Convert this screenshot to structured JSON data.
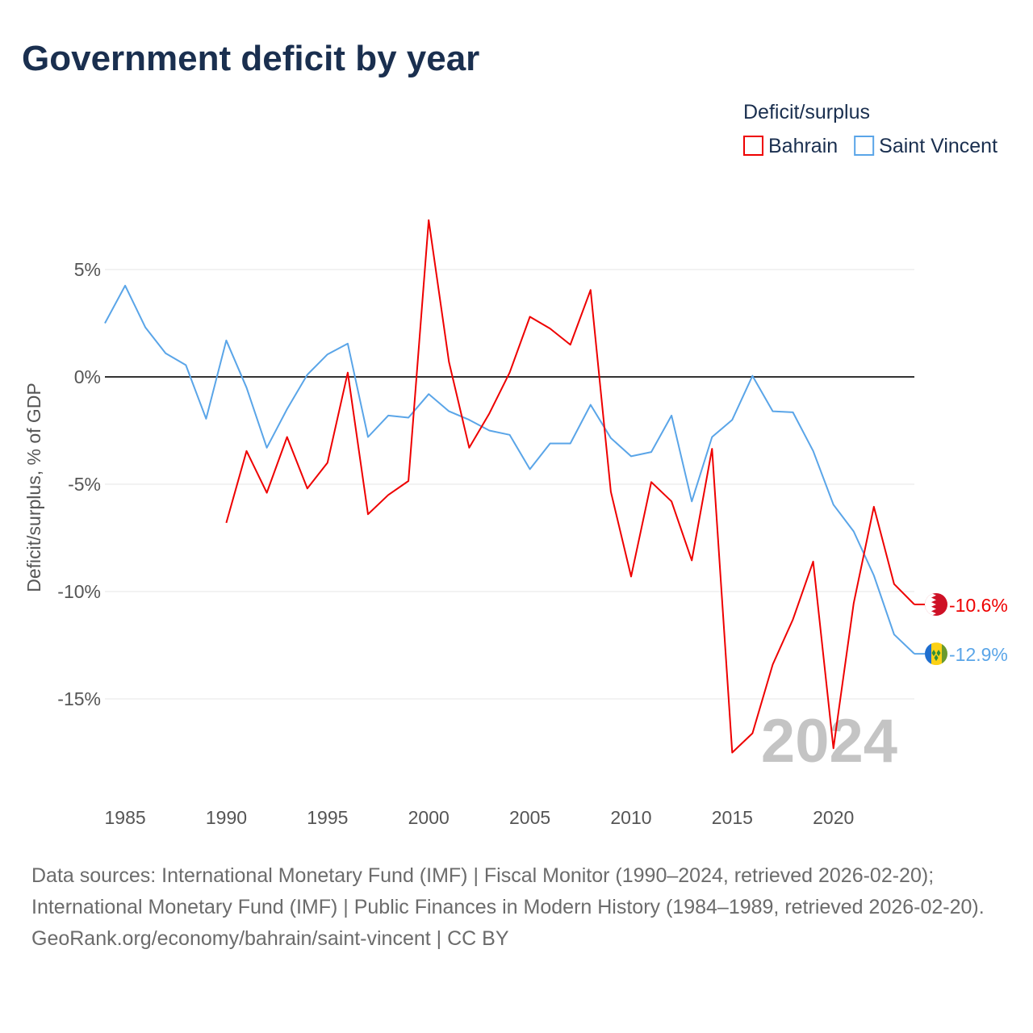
{
  "title": "Government deficit by year",
  "footer": {
    "sources": "Data sources: International Monetary Fund (IMF) | Fiscal Monitor (1990–2024, retrieved 2026-02-20); International Monetary Fund (IMF) | Public Finances in Modern History (1984–1989, retrieved 2026-02-20).",
    "credit": "GeoRank.org/economy/bahrain/saint-vincent | CC BY"
  },
  "chart_data": {
    "type": "line",
    "title": "Government deficit by year",
    "xlabel": "",
    "ylabel": "Deficit/surplus, % of GDP",
    "xlim": [
      1984,
      2024
    ],
    "ylim": [
      -19,
      8
    ],
    "xticks": [
      1985,
      1990,
      1995,
      2000,
      2005,
      2010,
      2015,
      2020
    ],
    "xtick_labels": [
      "1985",
      "1990",
      "1995",
      "2000",
      "2005",
      "2010",
      "2015",
      "2020"
    ],
    "yticks": [
      5,
      0,
      -5,
      -10,
      -15
    ],
    "ytick_labels": [
      "5%",
      "0%",
      "-5%",
      "-10%",
      "-15%"
    ],
    "grid": true,
    "legend": {
      "title": "Deficit/surplus",
      "position": "top-right"
    },
    "year_label": "2024",
    "series": [
      {
        "name": "Bahrain",
        "color": "#ee0000",
        "end_label": "-10.6%",
        "x": [
          1990,
          1991,
          1992,
          1993,
          1994,
          1995,
          1996,
          1997,
          1998,
          1999,
          2000,
          2001,
          2002,
          2003,
          2004,
          2005,
          2006,
          2007,
          2008,
          2009,
          2010,
          2011,
          2012,
          2013,
          2014,
          2015,
          2016,
          2017,
          2018,
          2019,
          2020,
          2021,
          2022,
          2023,
          2024
        ],
        "values": [
          -6.8,
          -3.45,
          -5.4,
          -2.8,
          -5.2,
          -4.0,
          0.2,
          -6.4,
          -5.5,
          -4.85,
          7.3,
          0.7,
          -3.3,
          -1.7,
          0.2,
          2.8,
          2.25,
          1.5,
          4.05,
          -5.35,
          -9.3,
          -4.9,
          -5.8,
          -8.55,
          -3.35,
          -17.5,
          -16.6,
          -13.4,
          -11.3,
          -8.6,
          -17.3,
          -10.55,
          -6.05,
          -9.65,
          -10.6
        ]
      },
      {
        "name": "Saint Vincent",
        "color": "#5aa5e8",
        "end_label": "-12.9%",
        "x": [
          1984,
          1985,
          1986,
          1987,
          1988,
          1989,
          1990,
          1991,
          1992,
          1993,
          1994,
          1995,
          1996,
          1997,
          1998,
          1999,
          2000,
          2001,
          2002,
          2003,
          2004,
          2005,
          2006,
          2007,
          2008,
          2009,
          2010,
          2011,
          2012,
          2013,
          2014,
          2015,
          2016,
          2017,
          2018,
          2019,
          2020,
          2021,
          2022,
          2023,
          2024
        ],
        "values": [
          2.5,
          4.25,
          2.3,
          1.1,
          0.55,
          -1.95,
          1.7,
          -0.5,
          -3.3,
          -1.5,
          0.1,
          1.05,
          1.55,
          -2.8,
          -1.8,
          -1.9,
          -0.8,
          -1.6,
          -2.0,
          -2.5,
          -2.7,
          -4.3,
          -3.1,
          -3.1,
          -1.3,
          -2.85,
          -3.7,
          -3.5,
          -1.8,
          -5.8,
          -2.8,
          -2.0,
          0.05,
          -1.6,
          -1.65,
          -3.45,
          -5.95,
          -7.2,
          -9.25,
          -12.0,
          -12.9
        ]
      }
    ]
  }
}
